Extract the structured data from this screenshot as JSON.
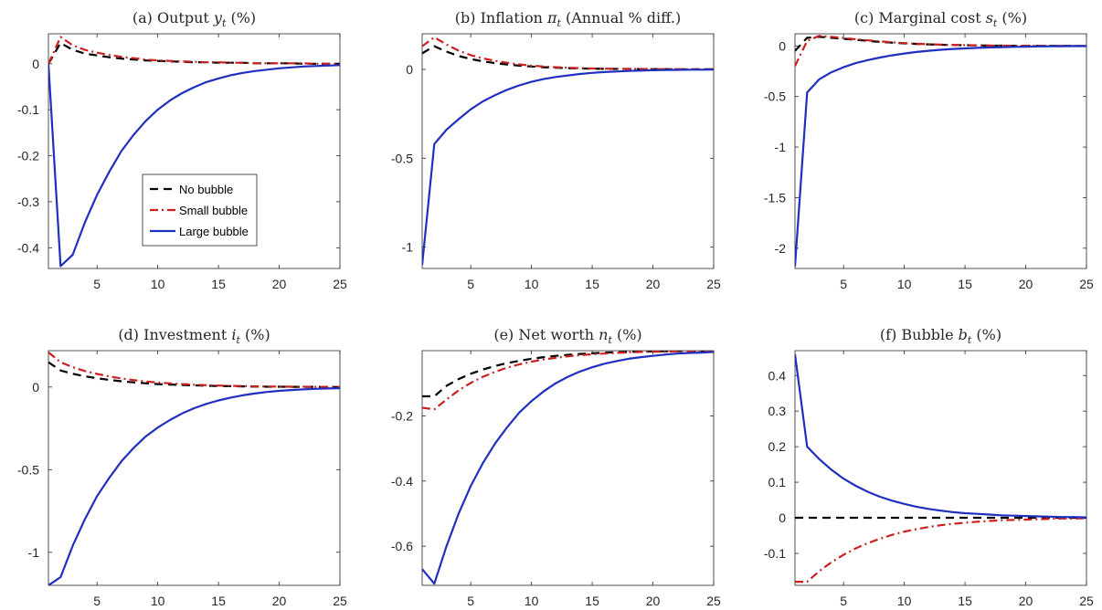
{
  "series_styles": [
    {
      "name": "No bubble",
      "color": "#000000",
      "dash": "dashed"
    },
    {
      "name": "Small bubble",
      "color": "#cc1f1f",
      "dash": "dash-dot"
    },
    {
      "name": "Large bubble",
      "color": "#1f2fbf",
      "dash": "solid"
    }
  ],
  "chart_data": [
    {
      "type": "line",
      "title": {
        "prefix": "(a) Output ",
        "symbol": "y",
        "sub": "t",
        "suffix": " (%)"
      },
      "xlim": [
        1,
        25
      ],
      "ylim": [
        -0.445,
        0.065
      ],
      "xticks": [
        5,
        10,
        15,
        20,
        25
      ],
      "yticks": [
        -0.4,
        -0.3,
        -0.2,
        -0.1,
        0
      ],
      "ytick_labels": [
        "-0.4",
        "-0.3",
        "-0.2",
        "-0.1",
        "0"
      ],
      "legend": true,
      "legend_position": "middle-left",
      "x": [
        1,
        2,
        3,
        4,
        5,
        6,
        7,
        8,
        9,
        10,
        11,
        12,
        13,
        14,
        15,
        16,
        17,
        18,
        19,
        20,
        21,
        22,
        23,
        24,
        25
      ],
      "series": [
        {
          "name": "No bubble",
          "values": [
            0.0,
            0.045,
            0.03,
            0.022,
            0.018,
            0.014,
            0.011,
            0.009,
            0.007,
            0.006,
            0.005,
            0.004,
            0.003,
            0.003,
            0.002,
            0.002,
            0.002,
            0.001,
            0.001,
            0.001,
            0.001,
            0.0,
            0.0,
            0.0,
            0.0
          ]
        },
        {
          "name": "Small bubble",
          "values": [
            0.0,
            0.058,
            0.04,
            0.03,
            0.024,
            0.019,
            0.015,
            0.012,
            0.009,
            0.007,
            0.006,
            0.005,
            0.004,
            0.003,
            0.003,
            0.002,
            0.002,
            0.001,
            0.001,
            0.001,
            0.001,
            0.001,
            0.0,
            0.0,
            0.0
          ]
        },
        {
          "name": "Large bubble",
          "values": [
            0.0,
            -0.44,
            -0.415,
            -0.345,
            -0.285,
            -0.235,
            -0.19,
            -0.155,
            -0.125,
            -0.1,
            -0.08,
            -0.064,
            -0.051,
            -0.04,
            -0.032,
            -0.025,
            -0.02,
            -0.016,
            -0.013,
            -0.01,
            -0.008,
            -0.006,
            -0.005,
            -0.004,
            -0.003
          ]
        }
      ]
    },
    {
      "type": "line",
      "title": {
        "prefix": "(b) Inflation ",
        "symbol": "π",
        "sub": "t",
        "suffix": " (Annual % diff.)"
      },
      "xlim": [
        1,
        25
      ],
      "ylim": [
        -1.12,
        0.2
      ],
      "xticks": [
        5,
        10,
        15,
        20,
        25
      ],
      "yticks": [
        -1,
        -0.5,
        0
      ],
      "ytick_labels": [
        "-1",
        "-0.5",
        "0"
      ],
      "legend": false,
      "x": [
        1,
        2,
        3,
        4,
        5,
        6,
        7,
        8,
        9,
        10,
        11,
        12,
        13,
        14,
        15,
        16,
        17,
        18,
        19,
        20,
        21,
        22,
        23,
        24,
        25
      ],
      "series": [
        {
          "name": "No bubble",
          "values": [
            0.09,
            0.13,
            0.1,
            0.075,
            0.058,
            0.045,
            0.035,
            0.027,
            0.021,
            0.016,
            0.012,
            0.009,
            0.007,
            0.005,
            0.004,
            0.003,
            0.002,
            0.002,
            0.001,
            0.001,
            0.001,
            0.0,
            0.0,
            0.0,
            0.0
          ]
        },
        {
          "name": "Small bubble",
          "values": [
            0.13,
            0.18,
            0.14,
            0.105,
            0.08,
            0.062,
            0.048,
            0.037,
            0.028,
            0.021,
            0.016,
            0.012,
            0.009,
            0.007,
            0.005,
            0.004,
            0.003,
            0.002,
            0.002,
            0.001,
            0.001,
            0.001,
            0.0,
            0.0,
            0.0
          ]
        },
        {
          "name": "Large bubble",
          "values": [
            -1.1,
            -0.42,
            -0.34,
            -0.28,
            -0.225,
            -0.18,
            -0.145,
            -0.115,
            -0.09,
            -0.07,
            -0.055,
            -0.043,
            -0.034,
            -0.026,
            -0.02,
            -0.015,
            -0.012,
            -0.009,
            -0.007,
            -0.005,
            -0.004,
            -0.003,
            -0.002,
            -0.002,
            -0.001
          ]
        }
      ]
    },
    {
      "type": "line",
      "title": {
        "prefix": "(c) Marginal cost ",
        "symbol": "s",
        "sub": "t",
        "suffix": " (%)"
      },
      "xlim": [
        1,
        25
      ],
      "ylim": [
        -2.2,
        0.12
      ],
      "xticks": [
        5,
        10,
        15,
        20,
        25
      ],
      "yticks": [
        -2,
        -1.5,
        -1,
        -0.5,
        0
      ],
      "ytick_labels": [
        "-2",
        "-1.5",
        "-1",
        "-0.5",
        "0"
      ],
      "legend": false,
      "x": [
        1,
        2,
        3,
        4,
        5,
        6,
        7,
        8,
        9,
        10,
        11,
        12,
        13,
        14,
        15,
        16,
        17,
        18,
        19,
        20,
        21,
        22,
        23,
        24,
        25
      ],
      "series": [
        {
          "name": "No bubble",
          "values": [
            -0.05,
            0.08,
            0.09,
            0.08,
            0.07,
            0.06,
            0.05,
            0.04,
            0.032,
            0.025,
            0.02,
            0.015,
            0.012,
            0.009,
            0.007,
            0.005,
            0.004,
            0.003,
            0.002,
            0.002,
            0.001,
            0.001,
            0.001,
            0.0,
            0.0
          ]
        },
        {
          "name": "Small bubble",
          "values": [
            -0.2,
            0.05,
            0.1,
            0.09,
            0.078,
            0.066,
            0.055,
            0.045,
            0.036,
            0.028,
            0.022,
            0.017,
            0.013,
            0.01,
            0.008,
            0.006,
            0.004,
            0.003,
            0.002,
            0.002,
            0.001,
            0.001,
            0.001,
            0.0,
            0.0
          ]
        },
        {
          "name": "Large bubble",
          "values": [
            -2.18,
            -0.46,
            -0.33,
            -0.26,
            -0.21,
            -0.17,
            -0.14,
            -0.115,
            -0.093,
            -0.075,
            -0.06,
            -0.048,
            -0.038,
            -0.03,
            -0.024,
            -0.019,
            -0.015,
            -0.012,
            -0.009,
            -0.007,
            -0.005,
            -0.004,
            -0.003,
            -0.002,
            -0.002
          ]
        }
      ]
    },
    {
      "type": "line",
      "title": {
        "prefix": "(d) Investment ",
        "symbol": "i",
        "sub": "t",
        "suffix": " (%)"
      },
      "xlim": [
        1,
        25
      ],
      "ylim": [
        -1.2,
        0.22
      ],
      "xticks": [
        5,
        10,
        15,
        20,
        25
      ],
      "yticks": [
        -1,
        -0.5,
        0
      ],
      "ytick_labels": [
        "-1",
        "-0.5",
        "0"
      ],
      "legend": false,
      "x": [
        1,
        2,
        3,
        4,
        5,
        6,
        7,
        8,
        9,
        10,
        11,
        12,
        13,
        14,
        15,
        16,
        17,
        18,
        19,
        20,
        21,
        22,
        23,
        24,
        25
      ],
      "series": [
        {
          "name": "No bubble",
          "values": [
            0.15,
            0.1,
            0.08,
            0.065,
            0.053,
            0.043,
            0.035,
            0.028,
            0.023,
            0.018,
            0.015,
            0.012,
            0.01,
            0.008,
            0.006,
            0.005,
            0.004,
            0.003,
            0.002,
            0.002,
            0.001,
            0.001,
            0.001,
            0.0,
            0.0
          ]
        },
        {
          "name": "Small bubble",
          "values": [
            0.21,
            0.15,
            0.12,
            0.097,
            0.079,
            0.064,
            0.052,
            0.042,
            0.034,
            0.027,
            0.022,
            0.018,
            0.014,
            0.011,
            0.009,
            0.007,
            0.006,
            0.004,
            0.003,
            0.003,
            0.002,
            0.002,
            0.001,
            0.001,
            0.001
          ]
        },
        {
          "name": "Large bubble",
          "values": [
            -1.2,
            -1.15,
            -0.96,
            -0.8,
            -0.66,
            -0.55,
            -0.45,
            -0.37,
            -0.3,
            -0.245,
            -0.2,
            -0.16,
            -0.128,
            -0.102,
            -0.081,
            -0.064,
            -0.05,
            -0.039,
            -0.03,
            -0.023,
            -0.018,
            -0.014,
            -0.011,
            -0.009,
            -0.007
          ]
        }
      ]
    },
    {
      "type": "line",
      "title": {
        "prefix": "(e) Net worth ",
        "symbol": "n",
        "sub": "t",
        "suffix": " (%)"
      },
      "xlim": [
        1,
        25
      ],
      "ylim": [
        -0.72,
        0.0
      ],
      "xticks": [
        5,
        10,
        15,
        20,
        25
      ],
      "yticks": [
        -0.6,
        -0.4,
        -0.2
      ],
      "ytick_labels": [
        "-0.6",
        "-0.4",
        "-0.2"
      ],
      "legend": false,
      "x": [
        1,
        2,
        3,
        4,
        5,
        6,
        7,
        8,
        9,
        10,
        11,
        12,
        13,
        14,
        15,
        16,
        17,
        18,
        19,
        20,
        21,
        22,
        23,
        24,
        25
      ],
      "series": [
        {
          "name": "No bubble",
          "values": [
            -0.14,
            -0.14,
            -0.108,
            -0.087,
            -0.071,
            -0.058,
            -0.047,
            -0.038,
            -0.031,
            -0.025,
            -0.02,
            -0.016,
            -0.013,
            -0.01,
            -0.008,
            -0.006,
            -0.005,
            -0.004,
            -0.003,
            -0.002,
            -0.002,
            -0.001,
            -0.001,
            -0.001,
            0.0
          ]
        },
        {
          "name": "Small bubble",
          "values": [
            -0.175,
            -0.18,
            -0.15,
            -0.122,
            -0.099,
            -0.08,
            -0.065,
            -0.052,
            -0.042,
            -0.034,
            -0.027,
            -0.022,
            -0.017,
            -0.014,
            -0.011,
            -0.009,
            -0.007,
            -0.005,
            -0.004,
            -0.003,
            -0.003,
            -0.002,
            -0.002,
            -0.001,
            -0.001
          ]
        },
        {
          "name": "Large bubble",
          "values": [
            -0.67,
            -0.715,
            -0.6,
            -0.5,
            -0.415,
            -0.345,
            -0.285,
            -0.235,
            -0.19,
            -0.155,
            -0.125,
            -0.1,
            -0.08,
            -0.064,
            -0.051,
            -0.04,
            -0.032,
            -0.025,
            -0.02,
            -0.016,
            -0.012,
            -0.009,
            -0.007,
            -0.006,
            -0.004
          ]
        }
      ]
    },
    {
      "type": "line",
      "title": {
        "prefix": "(f) Bubble ",
        "symbol": "b",
        "sub": "t",
        "suffix": " (%)"
      },
      "xlim": [
        1,
        25
      ],
      "ylim": [
        -0.19,
        0.47
      ],
      "xticks": [
        5,
        10,
        15,
        20,
        25
      ],
      "yticks": [
        -0.1,
        0,
        0.1,
        0.2,
        0.3,
        0.4
      ],
      "ytick_labels": [
        "-0.1",
        "0",
        "0.1",
        "0.2",
        "0.3",
        "0.4"
      ],
      "legend": false,
      "x": [
        1,
        2,
        3,
        4,
        5,
        6,
        7,
        8,
        9,
        10,
        11,
        12,
        13,
        14,
        15,
        16,
        17,
        18,
        19,
        20,
        21,
        22,
        23,
        24,
        25
      ],
      "series": [
        {
          "name": "No bubble",
          "values": [
            0,
            0,
            0,
            0,
            0,
            0,
            0,
            0,
            0,
            0,
            0,
            0,
            0,
            0,
            0,
            0,
            0,
            0,
            0,
            0,
            0,
            0,
            0,
            0,
            0
          ]
        },
        {
          "name": "Small bubble",
          "values": [
            -0.18,
            -0.18,
            -0.15,
            -0.125,
            -0.104,
            -0.086,
            -0.071,
            -0.059,
            -0.048,
            -0.039,
            -0.032,
            -0.026,
            -0.021,
            -0.017,
            -0.014,
            -0.011,
            -0.009,
            -0.007,
            -0.006,
            -0.005,
            -0.004,
            -0.003,
            -0.002,
            -0.002,
            -0.001
          ]
        },
        {
          "name": "Large bubble",
          "values": [
            0.46,
            0.2,
            0.165,
            0.135,
            0.11,
            0.09,
            0.073,
            0.059,
            0.048,
            0.039,
            0.031,
            0.025,
            0.02,
            0.016,
            0.013,
            0.011,
            0.009,
            0.007,
            0.006,
            0.005,
            0.004,
            0.003,
            0.002,
            0.002,
            0.001
          ]
        }
      ]
    }
  ]
}
